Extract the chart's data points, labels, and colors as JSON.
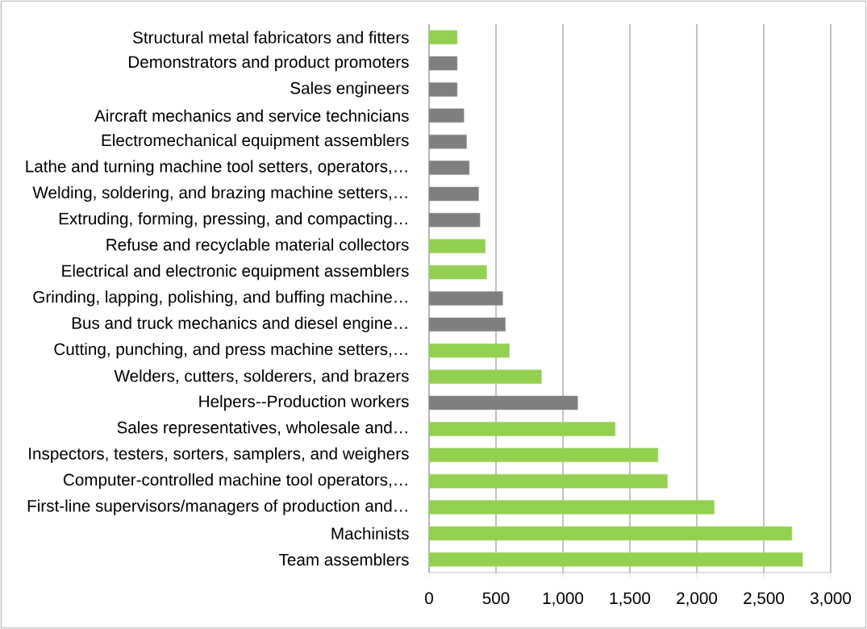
{
  "chart_data": {
    "type": "bar",
    "orientation": "horizontal",
    "categories": [
      "Structural metal fabricators and fitters",
      "Demonstrators and product promoters",
      "Sales engineers",
      "Aircraft mechanics and service technicians",
      "Electromechanical equipment assemblers",
      "Lathe and turning machine tool setters, operators,…",
      "Welding, soldering, and brazing machine setters,…",
      "Extruding, forming, pressing, and compacting…",
      "Refuse and recyclable material collectors",
      "Electrical and electronic equipment assemblers",
      "Grinding, lapping, polishing, and buffing machine…",
      "Bus and truck mechanics and diesel engine…",
      "Cutting, punching, and press machine setters,…",
      "Welders, cutters, solderers, and brazers",
      "Helpers--Production workers",
      "Sales representatives, wholesale and…",
      "Inspectors, testers, sorters, samplers, and weighers",
      "Computer-controlled machine tool operators,…",
      "First-line supervisors/managers of production and…",
      "Machinists",
      "Team assemblers"
    ],
    "values": [
      210,
      210,
      210,
      260,
      280,
      300,
      370,
      380,
      420,
      430,
      550,
      570,
      600,
      840,
      1110,
      1390,
      1710,
      1780,
      2130,
      2710,
      2790
    ],
    "colors": [
      "#92d050",
      "#7f7f7f",
      "#7f7f7f",
      "#7f7f7f",
      "#7f7f7f",
      "#7f7f7f",
      "#7f7f7f",
      "#7f7f7f",
      "#92d050",
      "#92d050",
      "#7f7f7f",
      "#7f7f7f",
      "#92d050",
      "#92d050",
      "#7f7f7f",
      "#92d050",
      "#92d050",
      "#92d050",
      "#92d050",
      "#92d050",
      "#92d050"
    ],
    "xlim": [
      0,
      3000
    ],
    "xticks": [
      0,
      500,
      {
        "value": 1000,
        "label": "1,000"
      },
      {
        "value": 1500,
        "label": "1,500"
      },
      {
        "value": 2000,
        "label": "2,000"
      },
      {
        "value": 2500,
        "label": "2,500"
      },
      {
        "value": 3000,
        "label": "3,000"
      }
    ],
    "grid": "x"
  }
}
